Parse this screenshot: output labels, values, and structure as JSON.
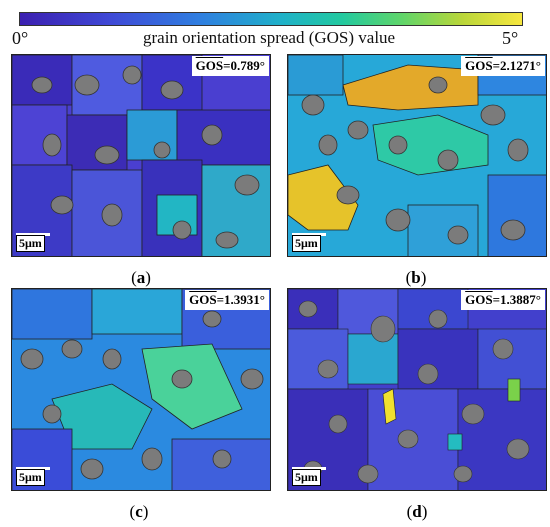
{
  "colorbar": {
    "min_label": "0°",
    "max_label": "5°",
    "title": "grain orientation spread (GOS) value",
    "colors": [
      "#3b1fb0",
      "#3f49d6",
      "#2f7fe0",
      "#1fb1c9",
      "#22c9a0",
      "#5fd56a",
      "#b9d63a",
      "#f7e73f"
    ]
  },
  "panels": [
    {
      "id": "a",
      "gos_symbol": "GOS",
      "gos_value": "=0.789°",
      "scale": "5μm",
      "caption_open": "(",
      "caption_letter": "a",
      "caption_close": ")"
    },
    {
      "id": "b",
      "gos_symbol": "GOS",
      "gos_value": "=2.1271°",
      "scale": "5μm",
      "caption_open": "(",
      "caption_letter": "b",
      "caption_close": ")"
    },
    {
      "id": "c",
      "gos_symbol": "GOS",
      "gos_value": "=1.3931°",
      "scale": "5μm",
      "caption_open": "(",
      "caption_letter": "c",
      "caption_close": ")"
    },
    {
      "id": "d",
      "gos_symbol": "GOS",
      "gos_value": "=1.3887°",
      "scale": "5μm",
      "caption_open": "(",
      "caption_letter": "d",
      "caption_close": ")"
    }
  ]
}
